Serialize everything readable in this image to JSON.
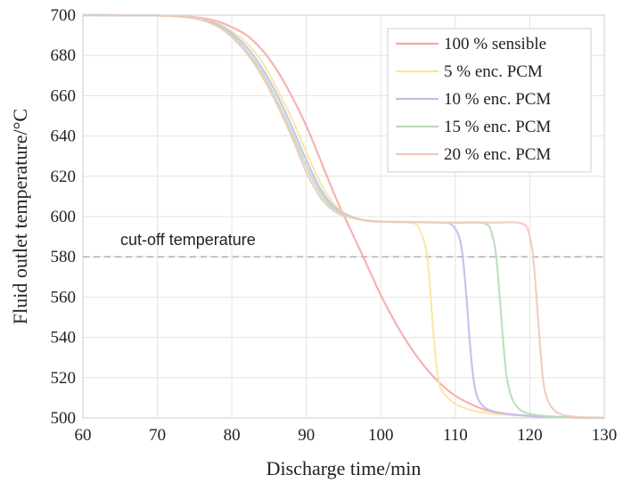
{
  "chart_data": {
    "type": "line",
    "xlabel": "Discharge time/min",
    "ylabel": "Fluid outlet temperature/°C",
    "xlim": [
      60,
      130
    ],
    "ylim": [
      500,
      700
    ],
    "xticks": [
      60,
      70,
      80,
      90,
      100,
      110,
      120,
      130
    ],
    "yticks": [
      500,
      520,
      540,
      560,
      580,
      600,
      620,
      640,
      660,
      680,
      700
    ],
    "grid": true,
    "legend_position": "top-right",
    "reference_line": {
      "y": 580,
      "label": "cut-off temperature",
      "style": "dashed"
    },
    "series": [
      {
        "name": "100 % sensible",
        "color": "#f7a8a8",
        "x": [
          60,
          70,
          75,
          78,
          80,
          82,
          84,
          86,
          88,
          90,
          92,
          94,
          96,
          98,
          100,
          102,
          104,
          106,
          108,
          110,
          112,
          114,
          116,
          118,
          120,
          122,
          124,
          126,
          130
        ],
        "y": [
          700,
          699.8,
          699,
          697,
          694,
          690,
          683,
          673,
          660,
          645,
          627,
          609,
          593,
          577,
          561,
          547,
          535,
          525,
          517,
          511,
          507,
          504,
          502.5,
          501.5,
          501,
          500.6,
          500.4,
          500.2,
          500
        ]
      },
      {
        "name": "5 % enc. PCM",
        "color": "#f6e7a2",
        "x": [
          60,
          70,
          75,
          78,
          80,
          82,
          84,
          86,
          88,
          90,
          92,
          94,
          96,
          98,
          100,
          102,
          104,
          105,
          106,
          106.5,
          107,
          107.5,
          108,
          109,
          110,
          112,
          115,
          120,
          125,
          130
        ],
        "y": [
          700,
          699.8,
          698.8,
          696,
          692,
          686,
          677,
          664,
          649,
          632,
          616,
          605,
          600,
          598,
          597.5,
          597.3,
          597,
          595,
          585,
          570,
          545,
          525,
          515,
          510,
          507,
          504,
          502,
          501,
          500.3,
          500
        ]
      },
      {
        "name": "10 % enc. PCM",
        "color": "#c1bdeb",
        "x": [
          60,
          70,
          75,
          78,
          80,
          82,
          84,
          86,
          88,
          90,
          92,
          94,
          96,
          98,
          100,
          104,
          108,
          109.5,
          110.5,
          111,
          111.5,
          112,
          112.5,
          113,
          114,
          116,
          120,
          125,
          130
        ],
        "y": [
          700,
          699.8,
          698.6,
          695.5,
          691,
          684,
          674,
          661,
          645,
          628,
          613,
          604,
          600,
          598,
          597.5,
          597.2,
          597,
          596,
          590,
          580,
          560,
          535,
          518,
          510,
          505,
          502.5,
          501,
          500.3,
          500
        ]
      },
      {
        "name": "15 % enc. PCM",
        "color": "#b9dcb9",
        "x": [
          60,
          70,
          75,
          78,
          80,
          82,
          84,
          86,
          88,
          90,
          92,
          94,
          96,
          98,
          100,
          105,
          110,
          114,
          115,
          115.5,
          116,
          116.5,
          117,
          118,
          120,
          125,
          130
        ],
        "y": [
          700,
          699.8,
          698.5,
          695,
          690,
          682,
          672,
          658,
          642,
          625,
          611,
          603,
          600,
          598,
          597.5,
          597.2,
          597,
          596.5,
          590,
          580,
          558,
          535,
          518,
          507,
          502,
          500.3,
          500
        ]
      },
      {
        "name": "20 % enc. PCM",
        "color": "#f1c9bd",
        "x": [
          60,
          70,
          75,
          78,
          80,
          82,
          84,
          86,
          88,
          90,
          92,
          94,
          96,
          98,
          100,
          105,
          110,
          115,
          119,
          120,
          120.5,
          121,
          121.5,
          122,
          123,
          125,
          130
        ],
        "y": [
          700,
          699.8,
          698.4,
          694.5,
          689,
          681,
          670,
          656,
          640,
          622,
          609,
          602,
          599.5,
          598,
          597.5,
          597.2,
          597,
          597,
          596.5,
          590,
          578,
          555,
          530,
          514,
          505,
          501,
          500
        ]
      }
    ]
  }
}
